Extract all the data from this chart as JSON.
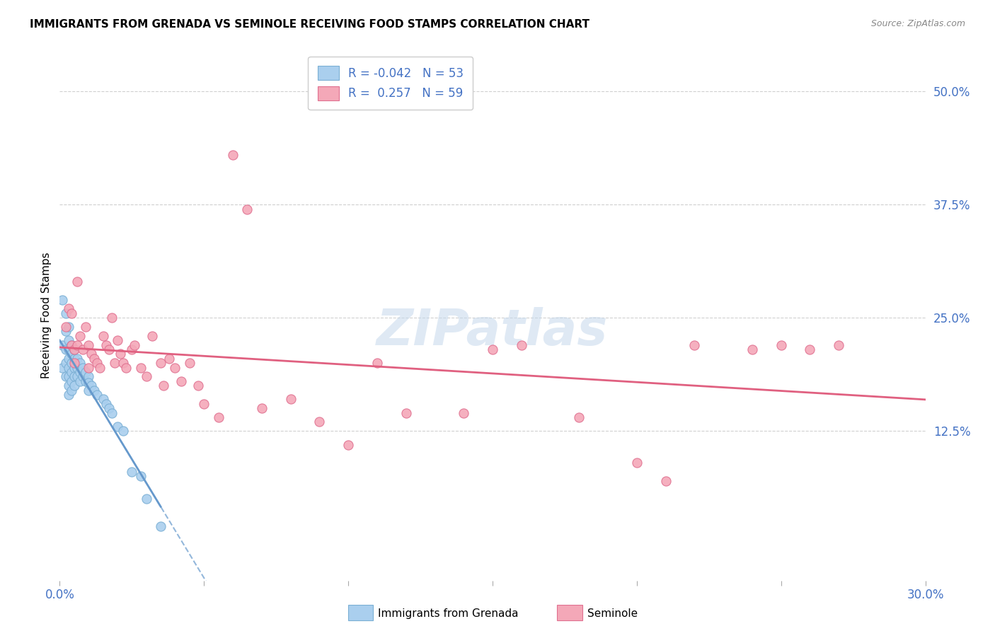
{
  "title": "IMMIGRANTS FROM GRENADA VS SEMINOLE RECEIVING FOOD STAMPS CORRELATION CHART",
  "source": "Source: ZipAtlas.com",
  "ylabel": "Receiving Food Stamps",
  "ytick_labels": [
    "50.0%",
    "37.5%",
    "25.0%",
    "12.5%"
  ],
  "ytick_values": [
    0.5,
    0.375,
    0.25,
    0.125
  ],
  "xlim": [
    0.0,
    0.3
  ],
  "ylim": [
    -0.04,
    0.545
  ],
  "color_grenada": "#aacfee",
  "color_grenada_edge": "#7aafd4",
  "color_seminole": "#f4a8b8",
  "color_seminole_edge": "#e07090",
  "color_blue_line": "#6699cc",
  "color_pink_line": "#e06080",
  "color_tick": "#4472c4",
  "watermark_text": "ZIPatlas",
  "grenada_x": [
    0.001,
    0.001,
    0.001,
    0.002,
    0.002,
    0.002,
    0.002,
    0.002,
    0.003,
    0.003,
    0.003,
    0.003,
    0.003,
    0.003,
    0.003,
    0.003,
    0.004,
    0.004,
    0.004,
    0.004,
    0.004,
    0.004,
    0.005,
    0.005,
    0.005,
    0.005,
    0.005,
    0.006,
    0.006,
    0.006,
    0.007,
    0.007,
    0.007,
    0.008,
    0.008,
    0.009,
    0.009,
    0.01,
    0.01,
    0.01,
    0.011,
    0.012,
    0.013,
    0.015,
    0.016,
    0.017,
    0.018,
    0.02,
    0.022,
    0.025,
    0.028,
    0.03,
    0.035
  ],
  "grenada_y": [
    0.27,
    0.22,
    0.195,
    0.255,
    0.235,
    0.215,
    0.2,
    0.185,
    0.24,
    0.225,
    0.215,
    0.205,
    0.195,
    0.185,
    0.175,
    0.165,
    0.22,
    0.21,
    0.2,
    0.19,
    0.18,
    0.17,
    0.215,
    0.205,
    0.195,
    0.185,
    0.175,
    0.205,
    0.195,
    0.185,
    0.2,
    0.19,
    0.18,
    0.195,
    0.185,
    0.19,
    0.18,
    0.185,
    0.178,
    0.17,
    0.175,
    0.17,
    0.165,
    0.16,
    0.155,
    0.15,
    0.145,
    0.13,
    0.125,
    0.08,
    0.075,
    0.05,
    0.02
  ],
  "seminole_x": [
    0.002,
    0.003,
    0.004,
    0.004,
    0.005,
    0.005,
    0.006,
    0.006,
    0.007,
    0.008,
    0.009,
    0.01,
    0.01,
    0.011,
    0.012,
    0.013,
    0.014,
    0.015,
    0.016,
    0.017,
    0.018,
    0.019,
    0.02,
    0.021,
    0.022,
    0.023,
    0.025,
    0.026,
    0.028,
    0.03,
    0.032,
    0.035,
    0.036,
    0.038,
    0.04,
    0.042,
    0.045,
    0.048,
    0.05,
    0.055,
    0.06,
    0.065,
    0.07,
    0.08,
    0.09,
    0.1,
    0.11,
    0.12,
    0.14,
    0.15,
    0.16,
    0.18,
    0.2,
    0.21,
    0.22,
    0.24,
    0.25,
    0.26,
    0.27
  ],
  "seminole_y": [
    0.24,
    0.26,
    0.255,
    0.22,
    0.215,
    0.2,
    0.29,
    0.22,
    0.23,
    0.215,
    0.24,
    0.22,
    0.195,
    0.21,
    0.205,
    0.2,
    0.195,
    0.23,
    0.22,
    0.215,
    0.25,
    0.2,
    0.225,
    0.21,
    0.2,
    0.195,
    0.215,
    0.22,
    0.195,
    0.185,
    0.23,
    0.2,
    0.175,
    0.205,
    0.195,
    0.18,
    0.2,
    0.175,
    0.155,
    0.14,
    0.43,
    0.37,
    0.15,
    0.16,
    0.135,
    0.11,
    0.2,
    0.145,
    0.145,
    0.215,
    0.22,
    0.14,
    0.09,
    0.07,
    0.22,
    0.215,
    0.22,
    0.215,
    0.22
  ]
}
